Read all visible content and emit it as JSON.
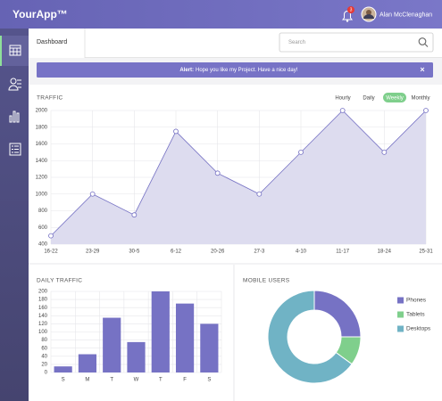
{
  "header": {
    "brand": "YourApp™",
    "notifications": "3",
    "user": "Alan McClenaghan"
  },
  "nav": {
    "tab": "Dashboard",
    "search_placeholder": "Search"
  },
  "alert": {
    "label": "Alert:",
    "message": "Hope you like my Project. Have a nice day!",
    "close": "×"
  },
  "chart_data": [
    {
      "type": "area",
      "title": "TRAFFIC",
      "ranges": [
        "Hourly",
        "Daily",
        "Weekly",
        "Monthly"
      ],
      "active_range": 2,
      "categories": [
        "16-22",
        "23-29",
        "30-5",
        "6-12",
        "20-26",
        "27-3",
        "4-10",
        "11-17",
        "18-24",
        "25-31"
      ],
      "values": [
        500,
        1000,
        750,
        1750,
        1250,
        1000,
        1500,
        2000,
        1500,
        2000
      ],
      "color": "#7672c4",
      "fill": "#dddcef",
      "ylim": [
        400,
        2000
      ],
      "yticks": [
        400,
        600,
        800,
        1000,
        1200,
        1400,
        1600,
        1800,
        2000
      ],
      "grid": true
    },
    {
      "type": "bar",
      "title": "DAILY TRAFFIC",
      "categories": [
        "S",
        "M",
        "T",
        "W",
        "T",
        "F",
        "S"
      ],
      "values": [
        15,
        45,
        135,
        75,
        200,
        170,
        120
      ],
      "color": "#7672c4",
      "ylim": [
        0,
        200
      ],
      "yticks": [
        0,
        20,
        40,
        60,
        80,
        100,
        120,
        140,
        160,
        180,
        200
      ],
      "grid": true
    },
    {
      "type": "donut",
      "title": "MOBILE USERS",
      "categories": [
        "Phones",
        "Tablets",
        "Desktops"
      ],
      "values": [
        25,
        10,
        65
      ],
      "colors": [
        "#7672c4",
        "#7fcf8c",
        "#70b3c5"
      ]
    }
  ]
}
